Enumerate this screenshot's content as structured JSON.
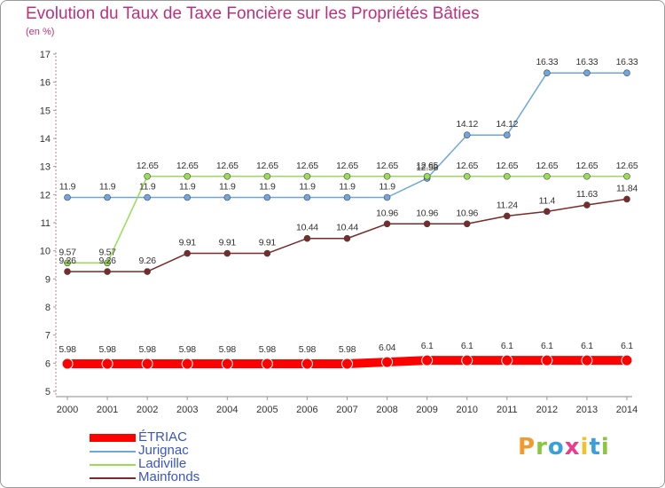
{
  "header": {
    "title": "Evolution du Taux de Taxe Foncière sur les Propriétés Bâties",
    "subtitle": "(en %)"
  },
  "logo": {
    "text": "Proxiti"
  },
  "chart_data": {
    "type": "line",
    "title": "Evolution du Taux de Taxe Foncière sur les Propriétés Bâties",
    "ylabel": "(en %)",
    "xlabel": "",
    "ylim": [
      5,
      17
    ],
    "yticks": [
      "5",
      "6",
      "7",
      "8",
      "9",
      "10",
      "11",
      "12",
      "13",
      "14",
      "15",
      "16",
      "17"
    ],
    "categories": [
      "2000",
      "2001",
      "2002",
      "2003",
      "2004",
      "2005",
      "2006",
      "2007",
      "2008",
      "2009",
      "2010",
      "2011",
      "2012",
      "2013",
      "2014"
    ],
    "grid": false,
    "legend_position": "bottom-left",
    "series": [
      {
        "name": "ÉTRIAC",
        "color": "#ff0000",
        "values": [
          5.98,
          5.98,
          5.98,
          5.98,
          5.98,
          5.98,
          5.98,
          5.98,
          6.04,
          6.1,
          6.1,
          6.1,
          6.1,
          6.1,
          6.1
        ],
        "labels": [
          "5.98",
          "5.98",
          "5.98",
          "5.98",
          "5.98",
          "5.98",
          "5.98",
          "5.98",
          "6.04",
          "6.1",
          "6.1",
          "6.1",
          "6.1",
          "6.1",
          "6.1"
        ]
      },
      {
        "name": "Jurignac",
        "color": "#6fa6dd",
        "values": [
          11.9,
          11.9,
          11.9,
          11.9,
          11.9,
          11.9,
          11.9,
          11.9,
          11.9,
          12.58,
          14.12,
          14.12,
          16.33,
          16.33,
          16.33
        ],
        "labels": [
          "11.9",
          "11.9",
          "11.9",
          "11.9",
          "11.9",
          "11.9",
          "11.9",
          "11.9",
          "11.9",
          "12.58",
          "14.12",
          "14.12",
          "16.33",
          "16.33",
          "16.33"
        ]
      },
      {
        "name": "Ladiville",
        "color": "#99dd55",
        "values": [
          9.57,
          9.57,
          12.65,
          12.65,
          12.65,
          12.65,
          12.65,
          12.65,
          12.65,
          12.65,
          12.65,
          12.65,
          12.65,
          12.65,
          12.65
        ],
        "labels": [
          "9.57",
          "9.57",
          "12.65",
          "12.65",
          "12.65",
          "12.65",
          "12.65",
          "12.65",
          "12.65",
          "12.65",
          "12.65",
          "12.65",
          "12.65",
          "12.65",
          "12.65"
        ]
      },
      {
        "name": "Mainfonds",
        "color": "#7a2a2a",
        "values": [
          9.26,
          9.26,
          9.26,
          9.91,
          9.91,
          9.91,
          10.44,
          10.44,
          10.96,
          10.96,
          10.96,
          11.24,
          11.4,
          11.63,
          11.84
        ],
        "labels": [
          "9.26",
          "9.26",
          "9.26",
          "9.91",
          "9.91",
          "9.91",
          "10.44",
          "10.44",
          "10.96",
          "10.96",
          "10.96",
          "11.24",
          "11.4",
          "11.63",
          "11.84"
        ]
      }
    ]
  }
}
